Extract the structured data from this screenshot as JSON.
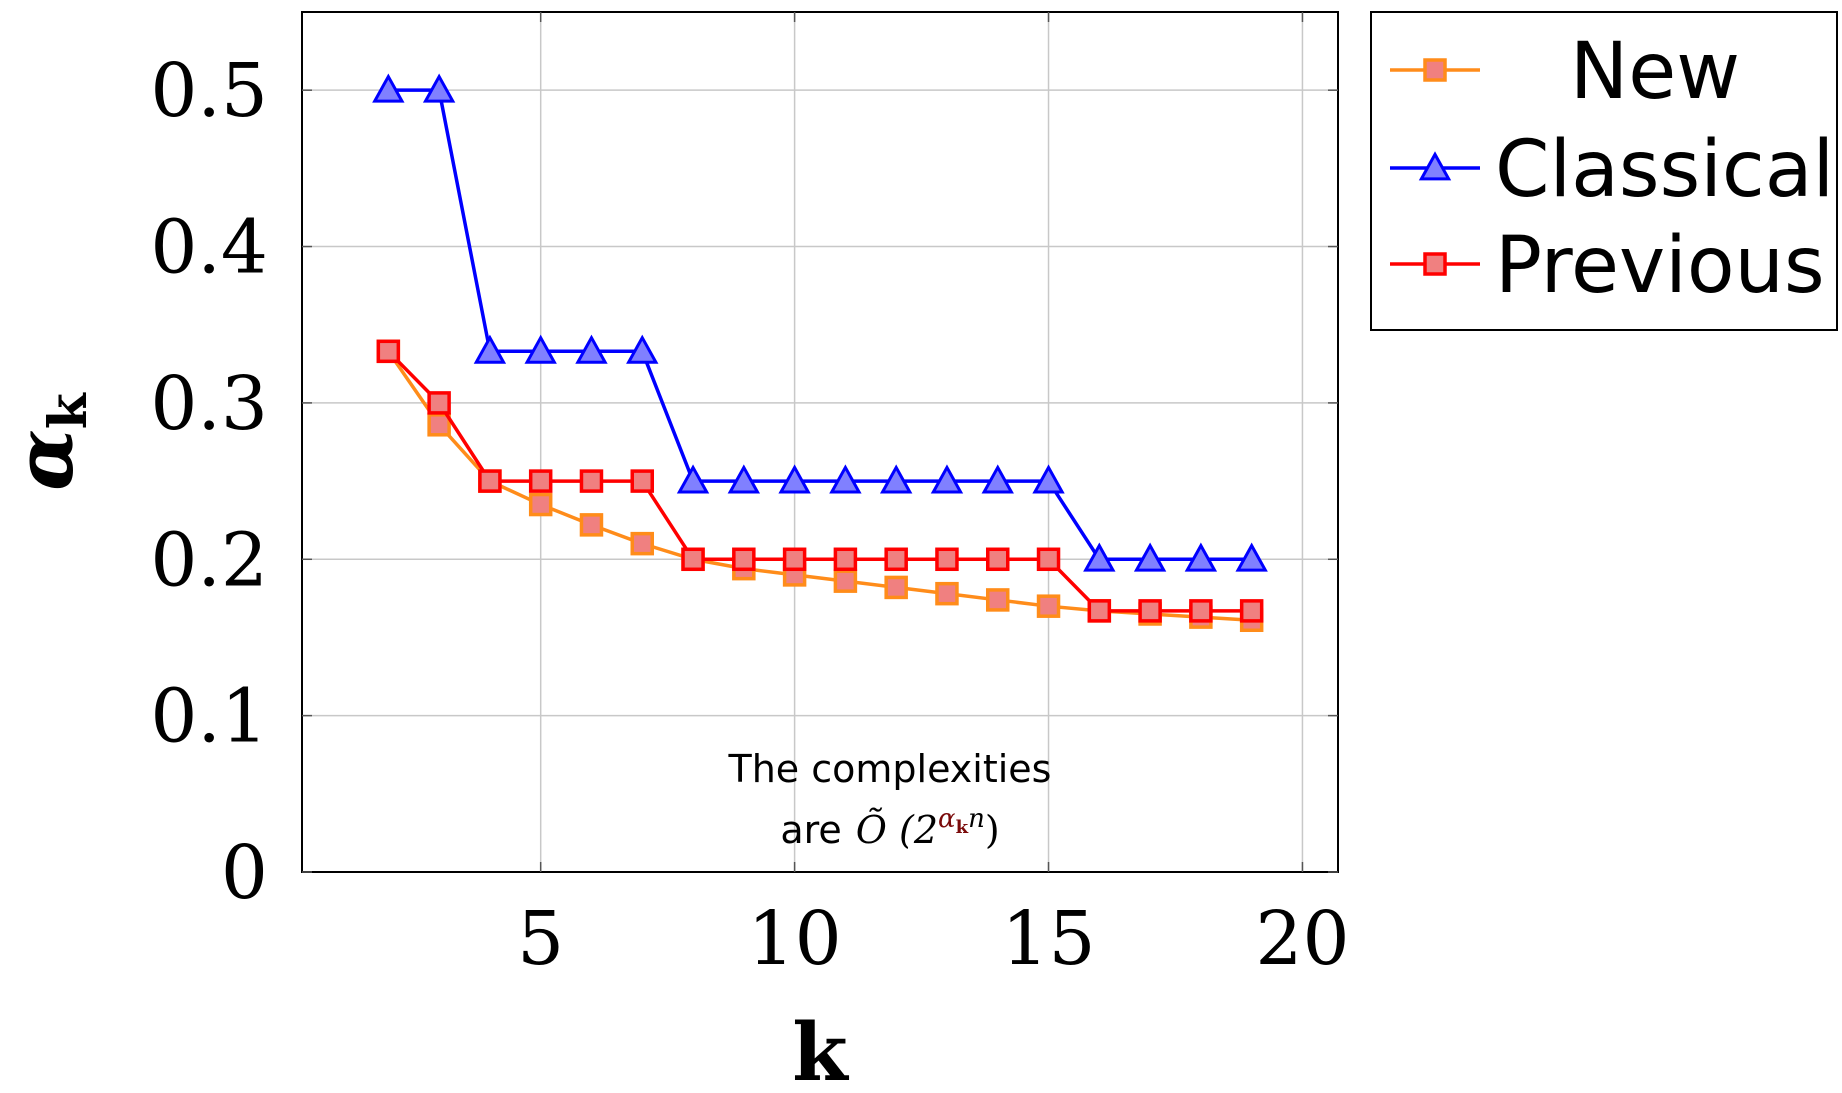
{
  "chart_data": {
    "type": "line",
    "xlabel": "k",
    "ylabel": "α",
    "ylabel_subscript": "k",
    "xlim": [
      0.3,
      20.7
    ],
    "ylim": [
      0,
      0.55
    ],
    "xticks": [
      5,
      10,
      15,
      20
    ],
    "xtick_labels": [
      "5",
      "10",
      "15",
      "20"
    ],
    "yticks": [
      0,
      0.1,
      0.2,
      0.3,
      0.4,
      0.5
    ],
    "ytick_labels": [
      "0",
      "0.1",
      "0.2",
      "0.3",
      "0.4",
      "0.5"
    ],
    "grid": true,
    "legend_position": "outside-top-right",
    "annotation": {
      "line1": "The complexities",
      "line2_prefix": "are",
      "line2_math": "Õ (2",
      "line2_sup_alpha": "α",
      "line2_sup_k": "k",
      "line2_sup_n": "n",
      "line2_close": ")"
    },
    "series": [
      {
        "name": "New",
        "color": "#ff8c1a",
        "marker": "square",
        "marker_fill": "#f08080",
        "x": [
          2,
          3,
          4,
          5,
          6,
          7,
          8,
          9,
          10,
          11,
          12,
          13,
          14,
          15,
          16,
          17,
          18,
          19
        ],
        "y": [
          0.333,
          0.286,
          0.25,
          0.235,
          0.222,
          0.21,
          0.2,
          0.194,
          0.19,
          0.186,
          0.182,
          0.178,
          0.174,
          0.17,
          0.167,
          0.165,
          0.163,
          0.161
        ]
      },
      {
        "name": "Classical",
        "color": "#0000ff",
        "marker": "triangle",
        "marker_fill": "#8080ff",
        "x": [
          2,
          3,
          4,
          5,
          6,
          7,
          8,
          9,
          10,
          11,
          12,
          13,
          14,
          15,
          16,
          17,
          18,
          19
        ],
        "y": [
          0.5,
          0.5,
          0.333,
          0.333,
          0.333,
          0.333,
          0.25,
          0.25,
          0.25,
          0.25,
          0.25,
          0.25,
          0.25,
          0.25,
          0.2,
          0.2,
          0.2,
          0.2
        ]
      },
      {
        "name": "Previous",
        "color": "#ff0000",
        "marker": "square",
        "marker_fill": "#f08080",
        "x": [
          2,
          3,
          4,
          5,
          6,
          7,
          8,
          9,
          10,
          11,
          12,
          13,
          14,
          15,
          16,
          17,
          18,
          19
        ],
        "y": [
          0.333,
          0.3,
          0.25,
          0.25,
          0.25,
          0.25,
          0.2,
          0.2,
          0.2,
          0.2,
          0.2,
          0.2,
          0.2,
          0.2,
          0.167,
          0.167,
          0.167,
          0.167
        ]
      }
    ],
    "colors": {
      "ylabel": "#7a0a0a",
      "grid": "#c8c8c8",
      "frame": "#000000"
    }
  }
}
